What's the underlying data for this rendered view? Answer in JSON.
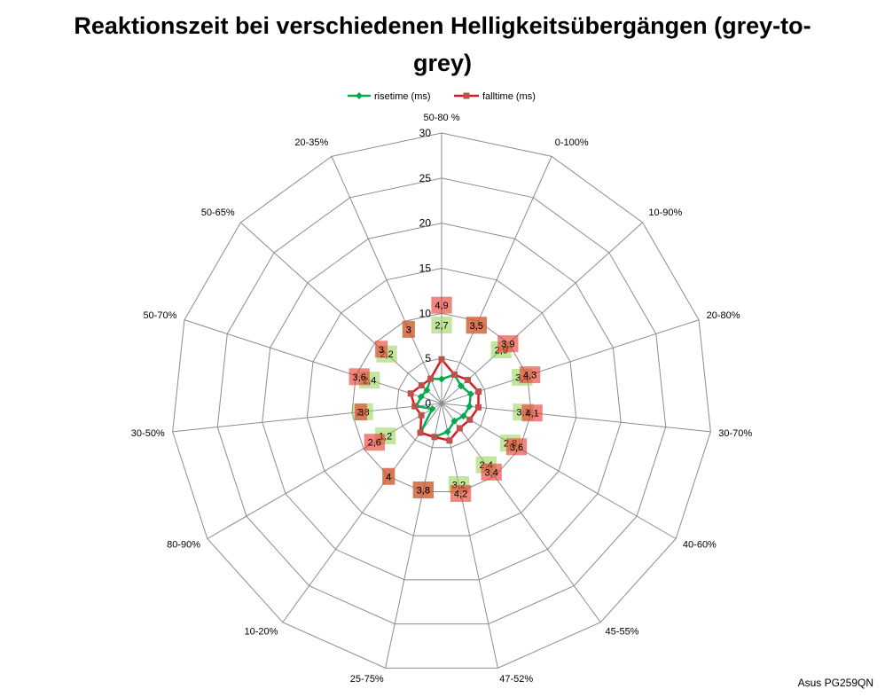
{
  "chart_data": {
    "type": "radar",
    "title": "Reaktionszeit bei verschiedenen Helligkeitsübergängen (grey-to-grey)",
    "categories": [
      "50-80 %",
      "0-100%",
      "10-90%",
      "20-80%",
      "30-70%",
      "40-60%",
      "45-55%",
      "47-52%",
      "25-75%",
      "10-20%",
      "80-90%",
      "30-50%",
      "50-70%",
      "50-65%",
      "20-35%"
    ],
    "series": [
      {
        "name": "risetime (ms)",
        "values": [
          2.7,
          3.5,
          2.9,
          3.4,
          3.1,
          2.8,
          2.4,
          3.2,
          3.8,
          4,
          1.2,
          2.8,
          2.4,
          2.2,
          3
        ],
        "labels": [
          "2,7",
          "3,5",
          "2,9",
          "3,4",
          "3,1",
          "2,8",
          "2,4",
          "3,2",
          "3,8",
          "4",
          "1,2",
          "2,8",
          "2,4",
          "2,2",
          "3"
        ],
        "color": "#00b050",
        "marker": "diamond",
        "marker_color": "#00a84c",
        "label_fill": "rgba(146,208,80,0.55)"
      },
      {
        "name": "falltime (ms)",
        "values": [
          4.9,
          3.5,
          3.9,
          4.3,
          4.1,
          3.6,
          3.4,
          4.2,
          3.8,
          4,
          2.6,
          3,
          3.6,
          3,
          3
        ],
        "labels": [
          "4,9",
          "3,5",
          "3,9",
          "4,3",
          "4,1",
          "3,6",
          "3,4",
          "4,2",
          "3,8",
          "4",
          "2,6",
          "3",
          "3,6",
          "3",
          "3"
        ],
        "color": "#d91a22",
        "marker": "square",
        "marker_color": "#c0504d",
        "label_fill": "rgba(232,52,44,0.6)"
      }
    ],
    "rlim": [
      0,
      30
    ],
    "r_ticks": [
      0,
      5,
      10,
      15,
      20,
      25,
      30
    ],
    "grid": true,
    "grid_color": "#8c8c8c",
    "legend": "top"
  },
  "footnote": "Asus PG259QN"
}
